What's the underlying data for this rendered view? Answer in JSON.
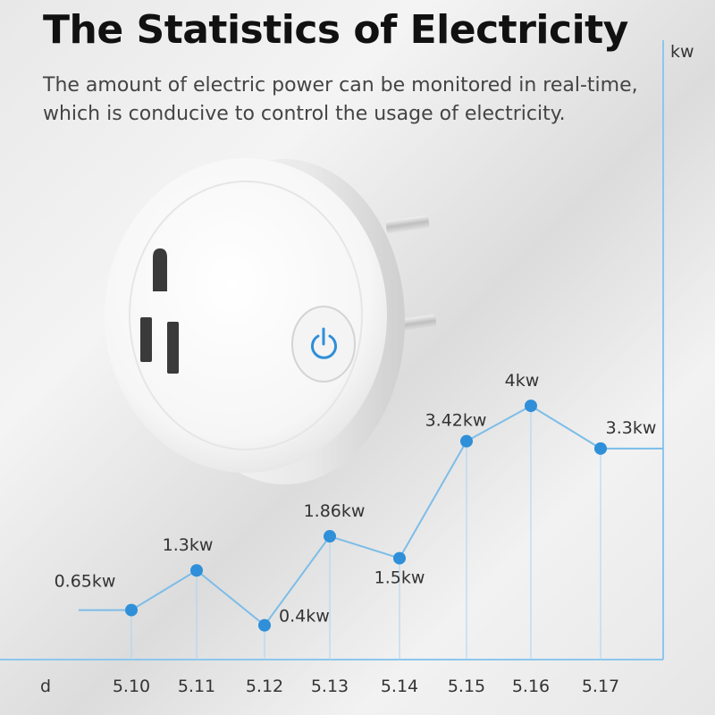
{
  "header": {
    "title": "The Statistics of Electricity",
    "subtitle_lines": [
      "The amount of electric power can be monitored in real-time,",
      "which is conducive to control the usage of electricity."
    ]
  },
  "colors": {
    "accent": "#2f8fd8",
    "line": "#7cbde8",
    "axis": "#8cc7ef"
  },
  "device": {
    "type": "smart-plug",
    "button_icon": "power-icon"
  },
  "chart_data": {
    "type": "line",
    "xlabel": "d",
    "ylabel": "kw",
    "categories": [
      "5.10",
      "5.11",
      "5.12",
      "5.13",
      "5.14",
      "5.15",
      "5.16",
      "5.17"
    ],
    "values": [
      0.65,
      1.3,
      0.4,
      1.86,
      1.5,
      3.42,
      4,
      3.3
    ],
    "labels": [
      "0.65kw",
      "1.3kw",
      "0.4kw",
      "1.86kw",
      "1.5kw",
      "3.42kw",
      "4kw",
      "3.3kw"
    ],
    "grid": "vertical guide lines",
    "legend": "none"
  }
}
